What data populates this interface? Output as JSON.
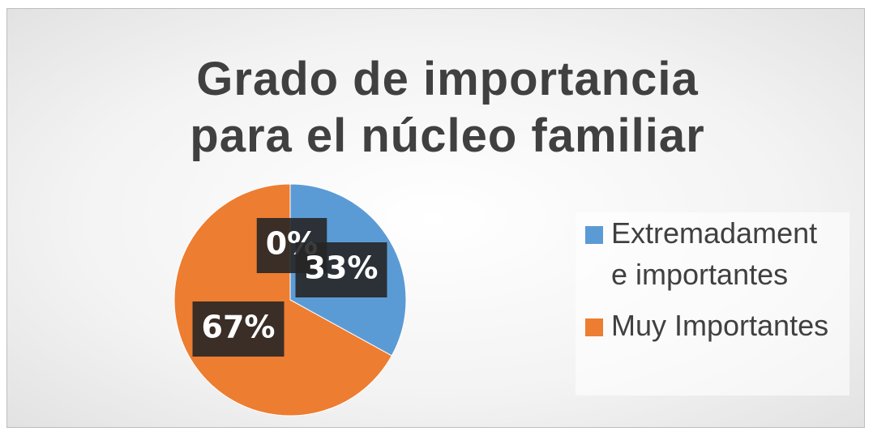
{
  "chart_data": {
    "type": "pie",
    "title": "Grado de importancia para el núcleo familiar",
    "title_lines": [
      "Grado de importancia",
      "para el núcleo familiar"
    ],
    "categories": [
      null,
      "Extremadamente importantes",
      "Muy Importantes"
    ],
    "values": [
      0,
      33,
      67
    ],
    "value_labels": [
      "0%",
      "33%",
      "67%"
    ],
    "colors": [
      "#a5a5a5",
      "#5b9bd5",
      "#ed7d31"
    ],
    "legend": "right"
  }
}
